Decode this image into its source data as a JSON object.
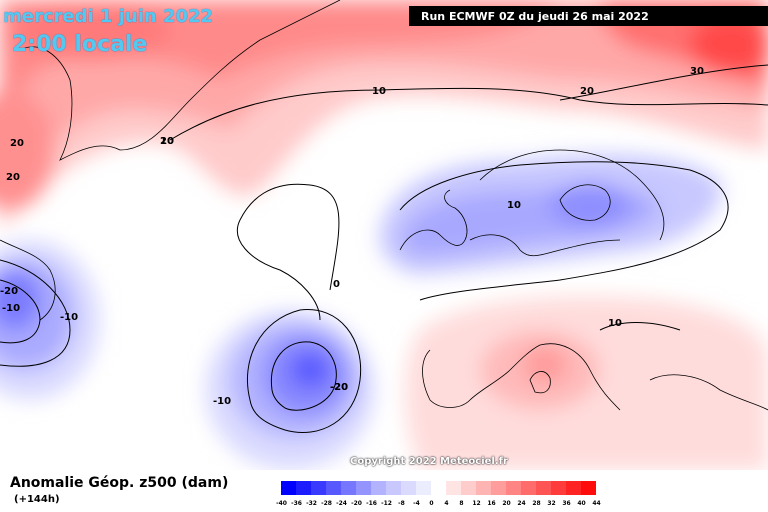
{
  "header": {
    "date": "mercredi 1 juin 2022",
    "time": "2:00 locale",
    "run": "Run ECMWF 0Z du jeudi 26 mai 2022"
  },
  "map": {
    "copyright": "Copyright 2022 Meteociel.fr",
    "contour_labels": [
      "10",
      "20",
      "30",
      "20",
      "20",
      "20",
      "10",
      "10",
      "0",
      "-20",
      "-20",
      "-10",
      "-10",
      "-20",
      "-10",
      "10"
    ]
  },
  "footer": {
    "variable": "Anomalie Géop. z500 (dam)",
    "lead_time": "(+144h)"
  },
  "legend": {
    "ticks": [
      "-40",
      "-36",
      "-32",
      "-28",
      "-24",
      "-20",
      "-16",
      "-12",
      "-8",
      "-4",
      "0",
      "4",
      "8",
      "12",
      "16",
      "20",
      "24",
      "28",
      "32",
      "36",
      "40",
      "44"
    ],
    "colors": [
      "#0000ff",
      "#1c1cff",
      "#3a3aff",
      "#5858ff",
      "#7676ff",
      "#9494ff",
      "#b2b2ff",
      "#c8c8ff",
      "#dadaff",
      "#ececff",
      "#ffffff",
      "#ffe4e4",
      "#ffcccc",
      "#ffb4b4",
      "#ff9c9c",
      "#ff8484",
      "#ff6c6c",
      "#ff5454",
      "#ff3c3c",
      "#ff2424",
      "#ff0c0c"
    ]
  }
}
